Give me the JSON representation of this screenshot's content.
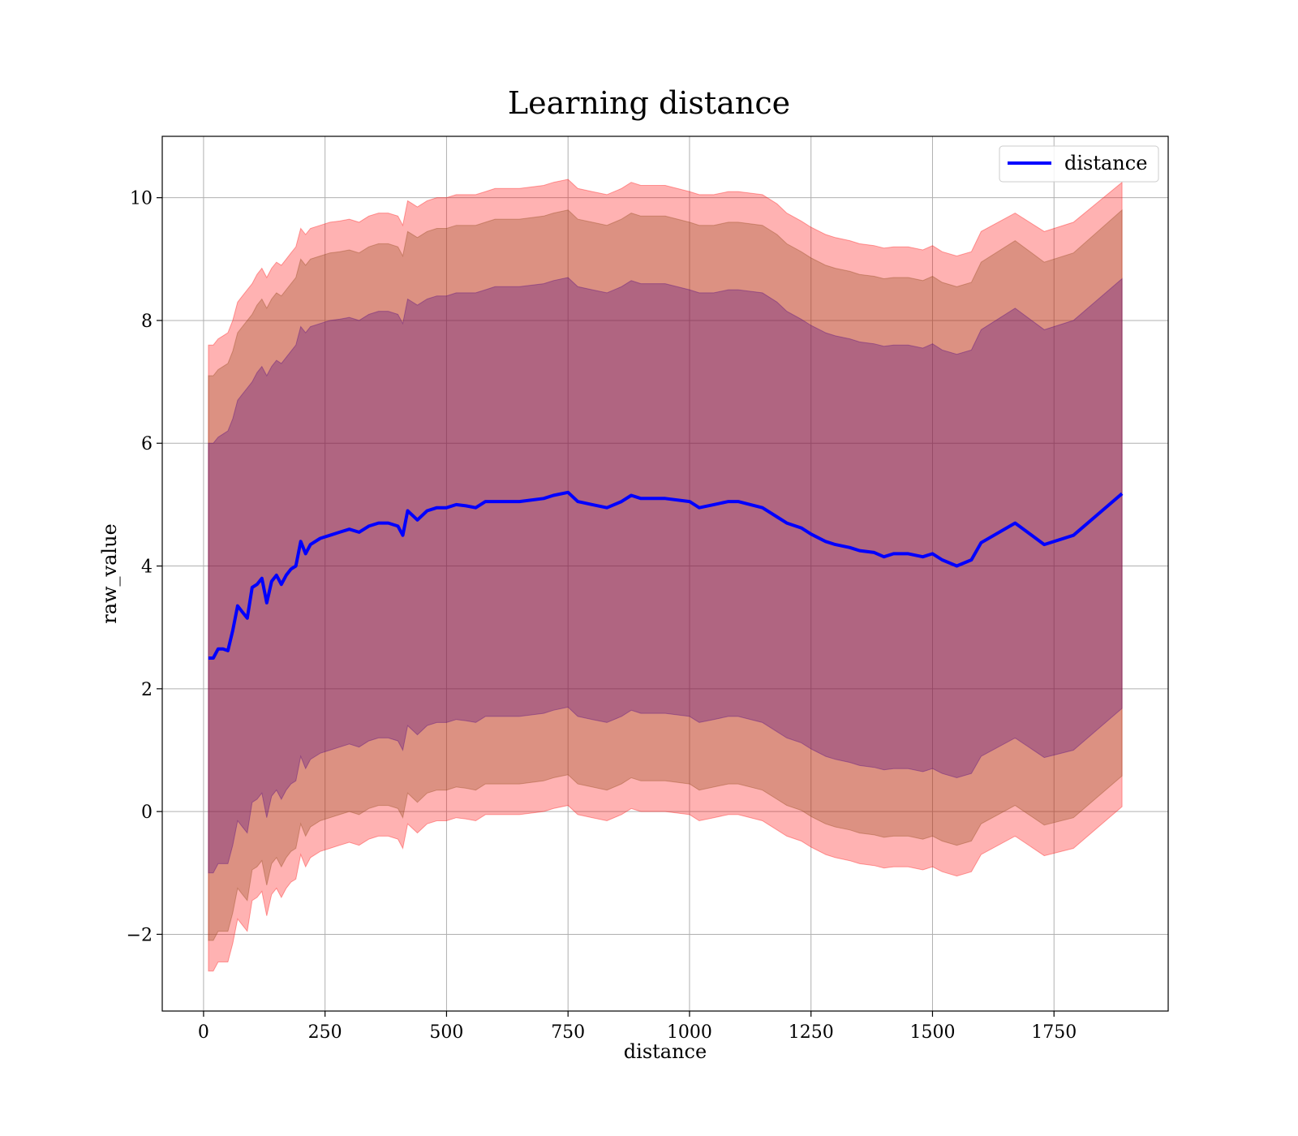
{
  "chart_data": {
    "type": "line",
    "title": "Learning distance",
    "xlabel": "distance",
    "ylabel": "raw_value",
    "xlim": [
      -85,
      1985
    ],
    "ylim": [
      -3.25,
      11.0
    ],
    "xticks": [
      0,
      250,
      500,
      750,
      1000,
      1250,
      1500,
      1750
    ],
    "xtick_labels": [
      "0",
      "250",
      "500",
      "750",
      "1000",
      "1250",
      "1500",
      "1750"
    ],
    "yticks": [
      -2,
      0,
      2,
      4,
      6,
      8,
      10
    ],
    "ytick_labels": [
      "−2",
      "0",
      "2",
      "4",
      "6",
      "8",
      "10"
    ],
    "grid": true,
    "legend_position": "top-right",
    "legend": [
      "distance"
    ],
    "colors": {
      "line": "#0000ff",
      "band_outer": "#ff0000",
      "band_middle": "#8b4513",
      "band_inner": "#4b0082"
    },
    "x": [
      10,
      20,
      30,
      40,
      50,
      60,
      70,
      80,
      90,
      100,
      110,
      120,
      130,
      140,
      150,
      160,
      170,
      180,
      190,
      200,
      210,
      220,
      240,
      260,
      280,
      300,
      320,
      340,
      360,
      380,
      400,
      410,
      420,
      440,
      460,
      480,
      500,
      520,
      540,
      560,
      580,
      600,
      650,
      700,
      720,
      750,
      770,
      800,
      830,
      860,
      880,
      900,
      950,
      1000,
      1020,
      1050,
      1080,
      1100,
      1150,
      1180,
      1200,
      1230,
      1250,
      1280,
      1300,
      1330,
      1350,
      1380,
      1400,
      1420,
      1450,
      1480,
      1500,
      1520,
      1550,
      1580,
      1600,
      1670,
      1730,
      1790,
      1890
    ],
    "series": [
      {
        "name": "distance",
        "values": [
          2.5,
          2.5,
          2.65,
          2.65,
          2.62,
          2.95,
          3.35,
          3.25,
          3.15,
          3.65,
          3.7,
          3.8,
          3.4,
          3.75,
          3.85,
          3.7,
          3.85,
          3.95,
          4.0,
          4.4,
          4.2,
          4.35,
          4.45,
          4.5,
          4.55,
          4.6,
          4.55,
          4.65,
          4.7,
          4.7,
          4.65,
          4.5,
          4.9,
          4.75,
          4.9,
          4.95,
          4.95,
          5.0,
          4.98,
          4.95,
          5.05,
          5.05,
          5.05,
          5.1,
          5.15,
          5.2,
          5.05,
          5.0,
          4.95,
          5.05,
          5.15,
          5.1,
          5.1,
          5.05,
          4.95,
          5.0,
          5.05,
          5.05,
          4.95,
          4.8,
          4.7,
          4.62,
          4.52,
          4.4,
          4.35,
          4.3,
          4.25,
          4.22,
          4.15,
          4.2,
          4.2,
          4.15,
          4.2,
          4.1,
          4.0,
          4.1,
          4.38,
          4.7,
          4.35,
          4.5,
          5.18
        ]
      }
    ],
    "bands": [
      {
        "color": "#ff0000",
        "upper": [
          7.6,
          7.6,
          7.7,
          7.75,
          7.8,
          8.0,
          8.3,
          8.4,
          8.5,
          8.6,
          8.75,
          8.85,
          8.7,
          8.85,
          8.95,
          8.9,
          9.0,
          9.1,
          9.2,
          9.5,
          9.4,
          9.5,
          9.55,
          9.6,
          9.62,
          9.65,
          9.6,
          9.7,
          9.75,
          9.75,
          9.7,
          9.55,
          9.95,
          9.85,
          9.95,
          10.0,
          10.0,
          10.05,
          10.05,
          10.05,
          10.1,
          10.15,
          10.15,
          10.2,
          10.25,
          10.3,
          10.15,
          10.1,
          10.05,
          10.15,
          10.25,
          10.2,
          10.2,
          10.1,
          10.05,
          10.05,
          10.1,
          10.1,
          10.05,
          9.9,
          9.75,
          9.62,
          9.52,
          9.4,
          9.35,
          9.3,
          9.25,
          9.22,
          9.18,
          9.2,
          9.2,
          9.15,
          9.22,
          9.12,
          9.05,
          9.12,
          9.45,
          9.75,
          9.45,
          9.6,
          10.25
        ],
        "lower": [
          -2.6,
          -2.6,
          -2.45,
          -2.45,
          -2.45,
          -2.15,
          -1.75,
          -1.85,
          -1.95,
          -1.45,
          -1.4,
          -1.3,
          -1.7,
          -1.35,
          -1.25,
          -1.4,
          -1.25,
          -1.15,
          -1.1,
          -0.7,
          -0.9,
          -0.75,
          -0.65,
          -0.6,
          -0.55,
          -0.5,
          -0.55,
          -0.45,
          -0.4,
          -0.4,
          -0.45,
          -0.6,
          -0.2,
          -0.35,
          -0.2,
          -0.15,
          -0.15,
          -0.1,
          -0.12,
          -0.15,
          -0.05,
          -0.05,
          -0.05,
          0.0,
          0.05,
          0.1,
          -0.05,
          -0.1,
          -0.15,
          -0.05,
          0.05,
          0.0,
          0.0,
          -0.05,
          -0.15,
          -0.1,
          -0.05,
          -0.05,
          -0.15,
          -0.3,
          -0.4,
          -0.48,
          -0.58,
          -0.7,
          -0.75,
          -0.8,
          -0.85,
          -0.88,
          -0.92,
          -0.9,
          -0.9,
          -0.95,
          -0.9,
          -0.98,
          -1.05,
          -0.98,
          -0.7,
          -0.4,
          -0.72,
          -0.6,
          0.08
        ]
      },
      {
        "color": "#8b4513",
        "upper": [
          7.1,
          7.1,
          7.2,
          7.25,
          7.3,
          7.5,
          7.8,
          7.9,
          8.0,
          8.1,
          8.25,
          8.35,
          8.2,
          8.35,
          8.45,
          8.4,
          8.5,
          8.6,
          8.7,
          9.0,
          8.9,
          9.0,
          9.05,
          9.1,
          9.12,
          9.15,
          9.1,
          9.2,
          9.25,
          9.25,
          9.2,
          9.05,
          9.45,
          9.35,
          9.45,
          9.5,
          9.5,
          9.55,
          9.55,
          9.55,
          9.6,
          9.65,
          9.65,
          9.7,
          9.75,
          9.8,
          9.65,
          9.6,
          9.55,
          9.65,
          9.75,
          9.7,
          9.7,
          9.6,
          9.55,
          9.55,
          9.6,
          9.6,
          9.55,
          9.4,
          9.25,
          9.12,
          9.02,
          8.9,
          8.85,
          8.8,
          8.75,
          8.72,
          8.68,
          8.7,
          8.7,
          8.65,
          8.72,
          8.62,
          8.55,
          8.62,
          8.95,
          9.3,
          8.95,
          9.1,
          9.8
        ],
        "lower": [
          -2.1,
          -2.1,
          -1.95,
          -1.95,
          -1.95,
          -1.65,
          -1.25,
          -1.35,
          -1.45,
          -0.95,
          -0.9,
          -0.8,
          -1.2,
          -0.85,
          -0.75,
          -0.9,
          -0.75,
          -0.65,
          -0.6,
          -0.2,
          -0.4,
          -0.25,
          -0.15,
          -0.1,
          -0.05,
          0.0,
          -0.05,
          0.05,
          0.1,
          0.1,
          0.05,
          -0.1,
          0.3,
          0.15,
          0.3,
          0.35,
          0.35,
          0.4,
          0.38,
          0.35,
          0.45,
          0.45,
          0.45,
          0.5,
          0.55,
          0.6,
          0.45,
          0.4,
          0.35,
          0.45,
          0.55,
          0.5,
          0.5,
          0.45,
          0.35,
          0.4,
          0.45,
          0.45,
          0.35,
          0.2,
          0.1,
          0.02,
          -0.08,
          -0.2,
          -0.25,
          -0.3,
          -0.35,
          -0.38,
          -0.42,
          -0.4,
          -0.4,
          -0.45,
          -0.4,
          -0.48,
          -0.55,
          -0.48,
          -0.2,
          0.1,
          -0.22,
          -0.1,
          0.58
        ]
      },
      {
        "color": "#4b0082",
        "upper": [
          6.0,
          6.0,
          6.1,
          6.15,
          6.2,
          6.4,
          6.7,
          6.8,
          6.9,
          7.0,
          7.15,
          7.25,
          7.1,
          7.25,
          7.35,
          7.3,
          7.4,
          7.5,
          7.6,
          7.9,
          7.8,
          7.9,
          7.95,
          8.0,
          8.02,
          8.05,
          8.0,
          8.1,
          8.15,
          8.15,
          8.1,
          7.95,
          8.35,
          8.25,
          8.35,
          8.4,
          8.4,
          8.45,
          8.45,
          8.45,
          8.5,
          8.55,
          8.55,
          8.6,
          8.65,
          8.7,
          8.55,
          8.5,
          8.45,
          8.55,
          8.65,
          8.6,
          8.6,
          8.5,
          8.45,
          8.45,
          8.5,
          8.5,
          8.45,
          8.3,
          8.15,
          8.02,
          7.92,
          7.8,
          7.75,
          7.7,
          7.65,
          7.62,
          7.58,
          7.6,
          7.6,
          7.55,
          7.62,
          7.52,
          7.45,
          7.52,
          7.85,
          8.2,
          7.85,
          8.0,
          8.68
        ],
        "lower": [
          -1.0,
          -1.0,
          -0.85,
          -0.85,
          -0.85,
          -0.55,
          -0.15,
          -0.25,
          -0.35,
          0.15,
          0.2,
          0.3,
          -0.1,
          0.25,
          0.35,
          0.2,
          0.35,
          0.45,
          0.5,
          0.9,
          0.7,
          0.85,
          0.95,
          1.0,
          1.05,
          1.1,
          1.05,
          1.15,
          1.2,
          1.2,
          1.15,
          1.0,
          1.4,
          1.25,
          1.4,
          1.45,
          1.45,
          1.5,
          1.48,
          1.45,
          1.55,
          1.55,
          1.55,
          1.6,
          1.65,
          1.7,
          1.55,
          1.5,
          1.45,
          1.55,
          1.65,
          1.6,
          1.6,
          1.55,
          1.45,
          1.5,
          1.55,
          1.55,
          1.45,
          1.3,
          1.2,
          1.12,
          1.02,
          0.9,
          0.85,
          0.8,
          0.75,
          0.72,
          0.68,
          0.7,
          0.7,
          0.65,
          0.7,
          0.62,
          0.55,
          0.62,
          0.9,
          1.2,
          0.88,
          1.0,
          1.68
        ]
      }
    ]
  }
}
